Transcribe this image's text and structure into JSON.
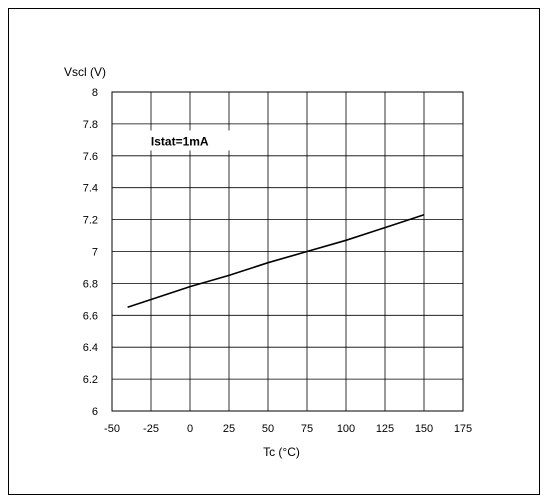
{
  "chart_data": {
    "type": "line",
    "xlabel": "Tc (°C)",
    "ylabel": "Vscl (V)",
    "xlim": [
      -50,
      175
    ],
    "ylim": [
      6,
      8
    ],
    "x_ticks": [
      -50,
      -25,
      0,
      25,
      50,
      75,
      100,
      125,
      150,
      175
    ],
    "y_ticks": [
      6,
      6.2,
      6.4,
      6.6,
      6.8,
      7,
      7.2,
      7.4,
      7.6,
      7.8,
      8
    ],
    "x_tick_labels": [
      "-50",
      "-25",
      "0",
      "25",
      "50",
      "75",
      "100",
      "125",
      "150",
      "175"
    ],
    "y_tick_labels": [
      "6",
      "6.2",
      "6.4",
      "6.6",
      "6.8",
      "7",
      "7.2",
      "7.4",
      "7.6",
      "7.8",
      "8"
    ],
    "grid": true,
    "series": [
      {
        "x": [
          -40,
          0,
          25,
          50,
          75,
          100,
          125,
          150
        ],
        "y": [
          6.65,
          6.78,
          6.85,
          6.93,
          7.0,
          7.07,
          7.15,
          7.23
        ],
        "color": "#000000"
      }
    ],
    "annotations": [
      {
        "text": "Istat=1mA",
        "x": -22.5,
        "y": 7.69
      }
    ]
  }
}
